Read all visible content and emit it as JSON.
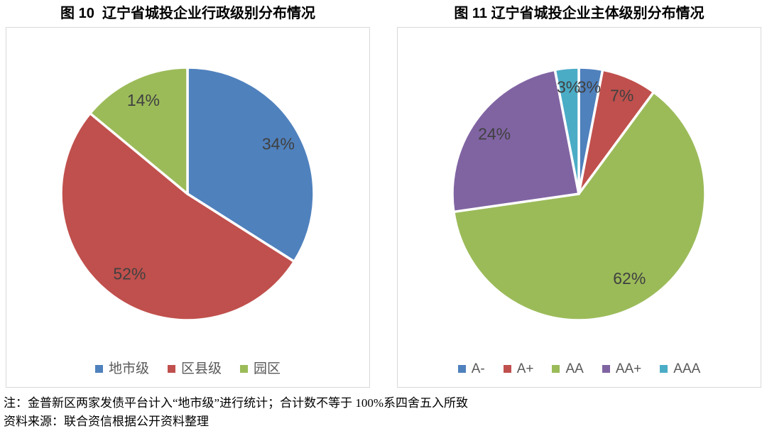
{
  "chart_data": [
    {
      "type": "pie",
      "figure_label": "图 10",
      "title": "图 10  辽宁省城投企业行政级别分布情况",
      "categories": [
        "地市级",
        "区县级",
        "园区"
      ],
      "values": [
        34,
        52,
        14
      ],
      "value_labels": [
        "34%",
        "52%",
        "14%"
      ],
      "colors": [
        "#4F81BD",
        "#C0504D",
        "#9BBB59"
      ],
      "start_angle_deg": 0,
      "direction": "clockwise",
      "legend_position": "bottom",
      "label_color": "#404040"
    },
    {
      "type": "pie",
      "figure_label": "图 11",
      "title": "图 11 辽宁省城投企业主体级别分布情况",
      "categories": [
        "A-",
        "A+",
        "AA",
        "AA+",
        "AAA"
      ],
      "values": [
        3,
        7,
        62,
        24,
        3
      ],
      "value_labels": [
        "3%",
        "7%",
        "62%",
        "24%",
        "3%"
      ],
      "colors": [
        "#4F81BD",
        "#C0504D",
        "#9BBB59",
        "#8064A2",
        "#4BACC6"
      ],
      "start_angle_deg": 0,
      "direction": "clockwise",
      "legend_position": "bottom",
      "label_color": "#404040"
    }
  ],
  "notes": {
    "note": "注：金普新区两家发债平台计入“地市级”进行统计；合计数不等于 100%系四舍五入所致",
    "source": "资料来源：联合资信根据公开资料整理"
  },
  "style_tokens": {
    "panel_border_color": "#D9D9D9",
    "legend_text_color": "#595959",
    "slice_gap_color": "#FFFFFF"
  }
}
